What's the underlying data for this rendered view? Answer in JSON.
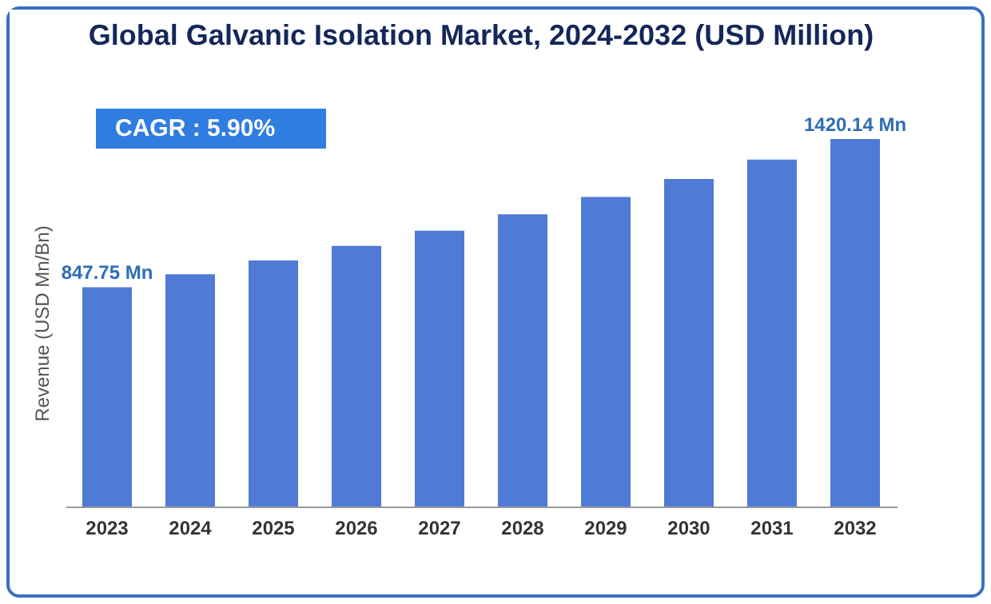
{
  "chart_data": {
    "type": "bar",
    "title": "Global Galvanic Isolation Market, 2024-2032 (USD Million)",
    "ylabel": "Revenue (USD Mn/Bn)",
    "categories": [
      "2023",
      "2024",
      "2025",
      "2026",
      "2027",
      "2028",
      "2029",
      "2030",
      "2031",
      "2032"
    ],
    "values": [
      847.75,
      898,
      951,
      1007,
      1066,
      1129,
      1196,
      1266,
      1341,
      1420.14
    ],
    "value_labels": [
      "847.75 Mn",
      null,
      null,
      null,
      null,
      null,
      null,
      null,
      null,
      "1420.14 Mn"
    ],
    "color": "#4f7bd6",
    "grid": false,
    "annotations": [
      "CAGR : 5.90%"
    ]
  }
}
